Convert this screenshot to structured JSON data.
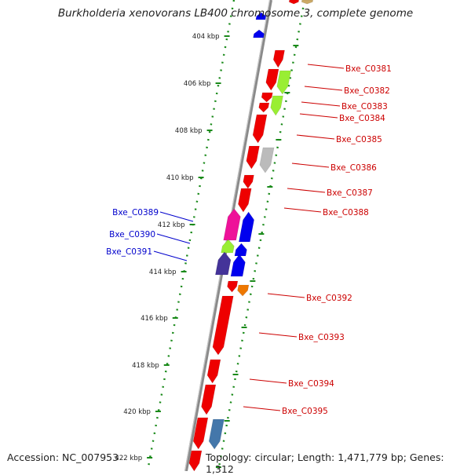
{
  "title": "Burkholderia xenovorans LB400 chromosome 3, complete genome",
  "footer": {
    "accession": "Accession: NC_007953",
    "topology": "Topology: circular; Length: 1,471,779 bp; Genes: 1,312"
  },
  "colors": {
    "backbone": "#8a8a8a",
    "scale_ticks": "#1a8a1a",
    "forward_label": "#cc0000",
    "reverse_label": "#0000cc",
    "gene_red": "#ee0000",
    "gene_blue": "#0000ee",
    "gene_lime": "#99ee33",
    "gene_gray": "#bbbbbb",
    "gene_pink": "#ee1199",
    "gene_purple": "#443399",
    "gene_orange": "#ee7700",
    "gene_steelblue": "#4477aa",
    "gene_tan": "#ccaa66"
  },
  "scale_labels": [
    "404 kbp",
    "406 kbp",
    "408 kbp",
    "410 kbp",
    "412 kbp",
    "414 kbp",
    "416 kbp",
    "418 kbp",
    "420 kbp",
    "422 kbp"
  ],
  "forward_labels": [
    "Bxe_C0381",
    "Bxe_C0382",
    "Bxe_C0383",
    "Bxe_C0384",
    "Bxe_C0385",
    "Bxe_C0386",
    "Bxe_C0387",
    "Bxe_C0388",
    "Bxe_C0392",
    "Bxe_C0393",
    "Bxe_C0394",
    "Bxe_C0395"
  ],
  "reverse_labels": [
    "Bxe_C0389",
    "Bxe_C0390",
    "Bxe_C0391"
  ]
}
